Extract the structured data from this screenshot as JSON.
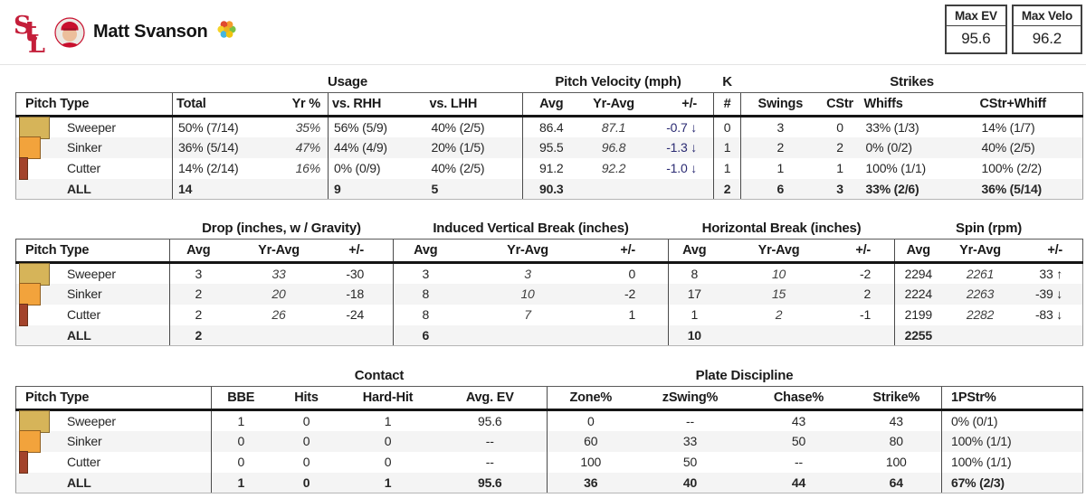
{
  "header": {
    "logo_letters": {
      "s": "S",
      "t": "t",
      "l": "L"
    },
    "player_name": "Matt Svanson",
    "stat_boxes": [
      {
        "label": "Max EV",
        "value": "95.6"
      },
      {
        "label": "Max Velo",
        "value": "96.2"
      }
    ]
  },
  "colors": {
    "cardinals_red": "#C41E3A",
    "velocity_diff_navy": "#2a2a72",
    "row_stripe": "#f4f4f4",
    "sweeper": "#D6B459",
    "sinker": "#F2A33C",
    "cutter": "#A3432B"
  },
  "pitches": [
    {
      "name": "Sweeper",
      "color": "#D6B459",
      "usage_pct": 50
    },
    {
      "name": "Sinker",
      "color": "#F2A33C",
      "usage_pct": 36
    },
    {
      "name": "Cutter",
      "color": "#A3432B",
      "usage_pct": 14
    }
  ],
  "tables": [
    {
      "name": "usage-velocity-strikes-table",
      "groups": [
        {
          "label": "",
          "span": 1
        },
        {
          "label": "Usage",
          "span": 4
        },
        {
          "label": "Pitch Velocity (mph)",
          "span": 3
        },
        {
          "label": "K",
          "span": 1
        },
        {
          "label": "Strikes",
          "span": 4
        }
      ],
      "columns": [
        "Pitch Type",
        "Total",
        "Yr %",
        "vs. RHH",
        "vs. LHH",
        "Avg",
        "Yr-Avg",
        "+/-",
        "#",
        "Swings",
        "CStr",
        "Whiffs",
        "CStr+Whiff"
      ],
      "rows": [
        {
          "pitch": "Sweeper",
          "cells": [
            "50% (7/14)",
            "35%",
            "56% (5/9)",
            "40% (2/5)",
            "86.4",
            "87.1",
            "-0.7 ↓",
            "0",
            "3",
            "0",
            "33% (1/3)",
            "14% (1/7)"
          ]
        },
        {
          "pitch": "Sinker",
          "cells": [
            "36% (5/14)",
            "47%",
            "44% (4/9)",
            "20% (1/5)",
            "95.5",
            "96.8",
            "-1.3 ↓",
            "1",
            "2",
            "2",
            "0% (0/2)",
            "40% (2/5)"
          ]
        },
        {
          "pitch": "Cutter",
          "cells": [
            "14% (2/14)",
            "16%",
            "0% (0/9)",
            "40% (2/5)",
            "91.2",
            "92.2",
            "-1.0 ↓",
            "1",
            "1",
            "1",
            "100% (1/1)",
            "100% (2/2)"
          ]
        },
        {
          "pitch": "ALL",
          "is_total": true,
          "cells": [
            "14",
            "",
            "9",
            "5",
            "90.3",
            "",
            "",
            "2",
            "6",
            "3",
            "33% (2/6)",
            "36% (5/14)"
          ]
        }
      ]
    },
    {
      "name": "movement-spin-table",
      "groups": [
        {
          "label": "",
          "span": 1
        },
        {
          "label": "Drop (inches, w / Gravity)",
          "span": 3
        },
        {
          "label": "Induced Vertical Break (inches)",
          "span": 3
        },
        {
          "label": "Horizontal Break (inches)",
          "span": 3
        },
        {
          "label": "Spin (rpm)",
          "span": 3
        }
      ],
      "columns": [
        "Pitch Type",
        "Avg",
        "Yr-Avg",
        "+/-",
        "Avg",
        "Yr-Avg",
        "+/-",
        "Avg",
        "Yr-Avg",
        "+/-",
        "Avg",
        "Yr-Avg",
        "+/-"
      ],
      "rows": [
        {
          "pitch": "Sweeper",
          "cells": [
            "3",
            "33",
            "-30",
            "3",
            "3",
            "0",
            "8",
            "10",
            "-2",
            "2294",
            "2261",
            "33 ↑"
          ]
        },
        {
          "pitch": "Sinker",
          "cells": [
            "2",
            "20",
            "-18",
            "8",
            "10",
            "-2",
            "17",
            "15",
            "2",
            "2224",
            "2263",
            "-39 ↓"
          ]
        },
        {
          "pitch": "Cutter",
          "cells": [
            "2",
            "26",
            "-24",
            "8",
            "7",
            "1",
            "1",
            "2",
            "-1",
            "2199",
            "2282",
            "-83 ↓"
          ]
        },
        {
          "pitch": "ALL",
          "is_total": true,
          "cells": [
            "2",
            "",
            "",
            "6",
            "",
            "",
            "10",
            "",
            "",
            "2255",
            "",
            ""
          ]
        }
      ]
    },
    {
      "name": "contact-plate-discipline-table",
      "groups": [
        {
          "label": "",
          "span": 1
        },
        {
          "label": "Contact",
          "span": 4
        },
        {
          "label": "Plate Discipline",
          "span": 4
        },
        {
          "label": "",
          "span": 1
        }
      ],
      "columns": [
        "Pitch Type",
        "BBE",
        "Hits",
        "Hard-Hit",
        "Avg. EV",
        "Zone%",
        "zSwing%",
        "Chase%",
        "Strike%",
        "1PStr%"
      ],
      "rows": [
        {
          "pitch": "Sweeper",
          "cells": [
            "1",
            "0",
            "1",
            "95.6",
            "0",
            "--",
            "43",
            "43",
            "0% (0/1)"
          ]
        },
        {
          "pitch": "Sinker",
          "cells": [
            "0",
            "0",
            "0",
            "--",
            "60",
            "33",
            "50",
            "80",
            "100% (1/1)"
          ]
        },
        {
          "pitch": "Cutter",
          "cells": [
            "0",
            "0",
            "0",
            "--",
            "100",
            "50",
            "--",
            "100",
            "100% (1/1)"
          ]
        },
        {
          "pitch": "ALL",
          "is_total": true,
          "cells": [
            "1",
            "0",
            "1",
            "95.6",
            "36",
            "40",
            "44",
            "64",
            "67% (2/3)"
          ]
        }
      ]
    }
  ]
}
